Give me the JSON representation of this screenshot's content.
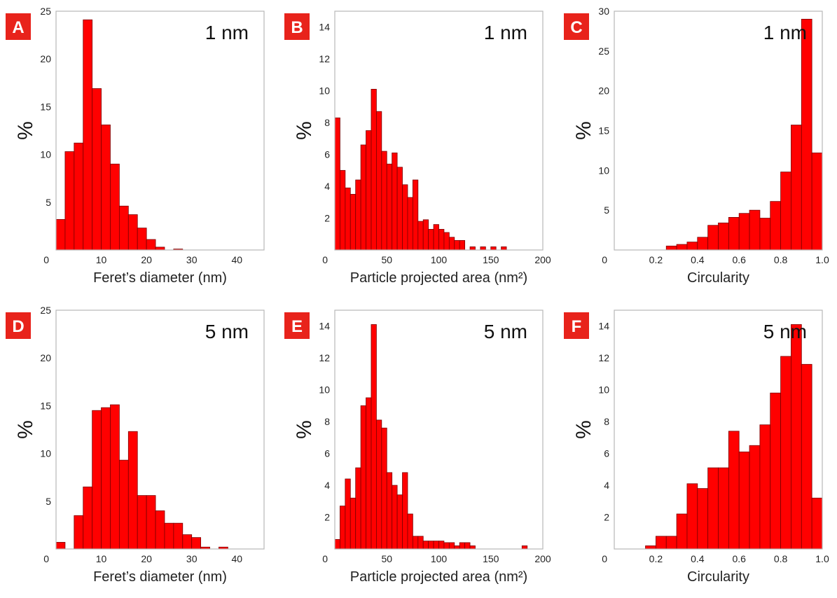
{
  "chart_data": [
    {
      "panel": "A",
      "type": "bar",
      "title": "1 nm",
      "xlabel": "Feret’s diameter (nm)",
      "ylabel": "%",
      "xlim": [
        0,
        46
      ],
      "ylim": [
        0,
        25
      ],
      "xticks": [
        0,
        10,
        20,
        30,
        40
      ],
      "yticks": [
        5,
        10,
        15,
        20,
        25
      ],
      "bin_start": 0,
      "bin_width": 2,
      "values": [
        3.2,
        10.3,
        11.2,
        24.1,
        16.9,
        13.1,
        9.0,
        4.6,
        3.7,
        2.3,
        1.1,
        0.3,
        0,
        0.1
      ]
    },
    {
      "panel": "B",
      "type": "bar",
      "title": "1 nm",
      "xlabel": "Particle projected area (nm²)",
      "ylabel": "%",
      "xlim": [
        0,
        200
      ],
      "ylim": [
        0,
        15
      ],
      "xticks": [
        0,
        50,
        100,
        150,
        200
      ],
      "yticks": [
        2,
        4,
        6,
        8,
        10,
        12,
        14
      ],
      "bin_start": 0,
      "bin_width": 5,
      "values": [
        8.3,
        5.0,
        3.9,
        3.5,
        4.4,
        6.6,
        7.5,
        10.1,
        8.7,
        6.2,
        5.4,
        6.1,
        5.2,
        4.1,
        3.3,
        4.4,
        1.8,
        1.9,
        1.3,
        1.6,
        1.3,
        1.1,
        0.8,
        0.6,
        0.6,
        0,
        0.2,
        0,
        0.2,
        0,
        0.2,
        0,
        0.2
      ]
    },
    {
      "panel": "C",
      "type": "bar",
      "title": "1 nm",
      "xlabel": "Circularity",
      "ylabel": "%",
      "xlim": [
        0,
        1.0
      ],
      "ylim": [
        0,
        30
      ],
      "xticks": [
        0.2,
        0.4,
        0.6,
        0.8,
        1.0
      ],
      "xticklabels": [
        "0.2",
        "0.4",
        "0.6",
        "0.8",
        "1.0"
      ],
      "yticks": [
        5,
        10,
        15,
        20,
        25,
        30
      ],
      "bin_start": 0.2,
      "bin_width": 0.05,
      "values": [
        0,
        0.5,
        0.7,
        1.0,
        1.6,
        3.1,
        3.4,
        4.1,
        4.6,
        5.0,
        4.0,
        6.1,
        9.8,
        15.7,
        29.0,
        12.2
      ]
    },
    {
      "panel": "D",
      "type": "bar",
      "title": "5 nm",
      "xlabel": "Feret’s diameter (nm)",
      "ylabel": "%",
      "xlim": [
        0,
        46
      ],
      "ylim": [
        0,
        25
      ],
      "xticks": [
        0,
        10,
        20,
        30,
        40
      ],
      "yticks": [
        5,
        10,
        15,
        20,
        25
      ],
      "bin_start": 0,
      "bin_width": 2,
      "values": [
        0.7,
        0,
        3.5,
        6.5,
        14.5,
        14.8,
        15.1,
        9.3,
        12.3,
        5.6,
        5.6,
        4.0,
        2.7,
        2.7,
        1.5,
        1.2,
        0.2,
        0,
        0.2
      ]
    },
    {
      "panel": "E",
      "type": "bar",
      "title": "5 nm",
      "xlabel": "Particle projected area (nm²)",
      "ylabel": "%",
      "xlim": [
        0,
        200
      ],
      "ylim": [
        0,
        15
      ],
      "xticks": [
        0,
        50,
        100,
        150,
        200
      ],
      "yticks": [
        2,
        4,
        6,
        8,
        10,
        12,
        14
      ],
      "bin_start": 0,
      "bin_width": 5,
      "values": [
        0.6,
        2.7,
        4.4,
        3.2,
        5.1,
        9.0,
        9.5,
        14.1,
        8.1,
        7.6,
        4.8,
        4.0,
        3.4,
        4.8,
        2.2,
        0.8,
        0.8,
        0.5,
        0.5,
        0.5,
        0.5,
        0.4,
        0.4,
        0.2,
        0.4,
        0.4,
        0.2,
        0,
        0,
        0,
        0,
        0,
        0,
        0,
        0,
        0,
        0.2
      ]
    },
    {
      "panel": "F",
      "type": "bar",
      "title": "5 nm",
      "xlabel": "Circularity",
      "ylabel": "%",
      "xlim": [
        0,
        1.0
      ],
      "ylim": [
        0,
        15
      ],
      "xticks": [
        0.2,
        0.4,
        0.6,
        0.8,
        1.0
      ],
      "xticklabels": [
        "0.2",
        "0.4",
        "0.6",
        "0.8",
        "1.0"
      ],
      "yticks": [
        2,
        4,
        6,
        8,
        10,
        12,
        14
      ],
      "bin_start": 0.15,
      "bin_width": 0.05,
      "values": [
        0.2,
        0.8,
        0.8,
        2.2,
        4.1,
        3.8,
        5.1,
        5.1,
        7.4,
        6.1,
        6.5,
        7.8,
        9.8,
        12.1,
        14.1,
        11.6,
        3.2
      ]
    }
  ]
}
